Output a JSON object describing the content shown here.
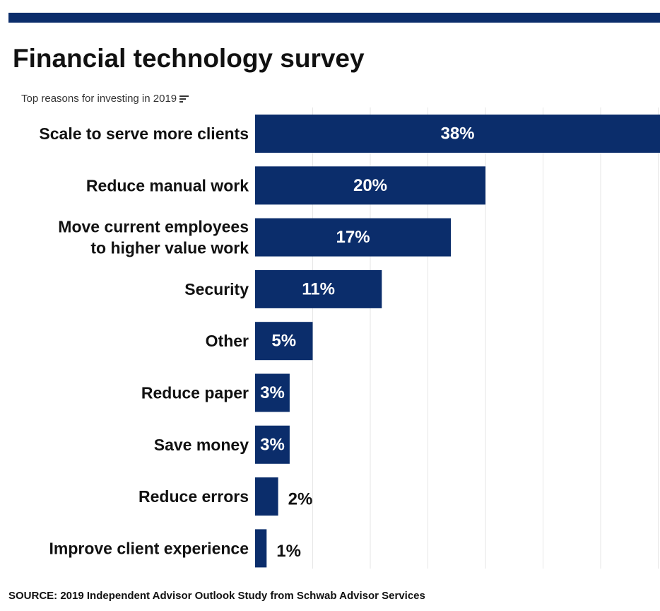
{
  "title": "Financial technology survey",
  "subtitle": "Top reasons for investing in 2019",
  "subtitle_icon": "sort-descending-icon",
  "source": "SOURCE: 2019 Independent Advisor Outlook Study from Schwab Advisor Services",
  "colors": {
    "bar": "#0b2d6b",
    "rule": "#0b2d6b",
    "label_inside": "#ffffff",
    "label_outside": "#111111",
    "grid": "#e6e6e6"
  },
  "chart_data": {
    "type": "bar",
    "orientation": "horizontal",
    "categories": [
      [
        "Scale to serve more clients"
      ],
      [
        "Reduce manual work"
      ],
      [
        "Move current employees",
        "to higher value work"
      ],
      [
        "Security"
      ],
      [
        "Other"
      ],
      [
        "Reduce paper"
      ],
      [
        "Save money"
      ],
      [
        "Reduce errors"
      ],
      [
        "Improve client experience"
      ]
    ],
    "values": [
      38,
      20,
      17,
      11,
      5,
      3,
      3,
      2,
      1
    ],
    "value_labels": [
      "38%",
      "20%",
      "17%",
      "11%",
      "5%",
      "3%",
      "3%",
      "2%",
      "1%"
    ],
    "xlim": [
      0,
      35
    ],
    "grid": true,
    "legend": "none"
  }
}
